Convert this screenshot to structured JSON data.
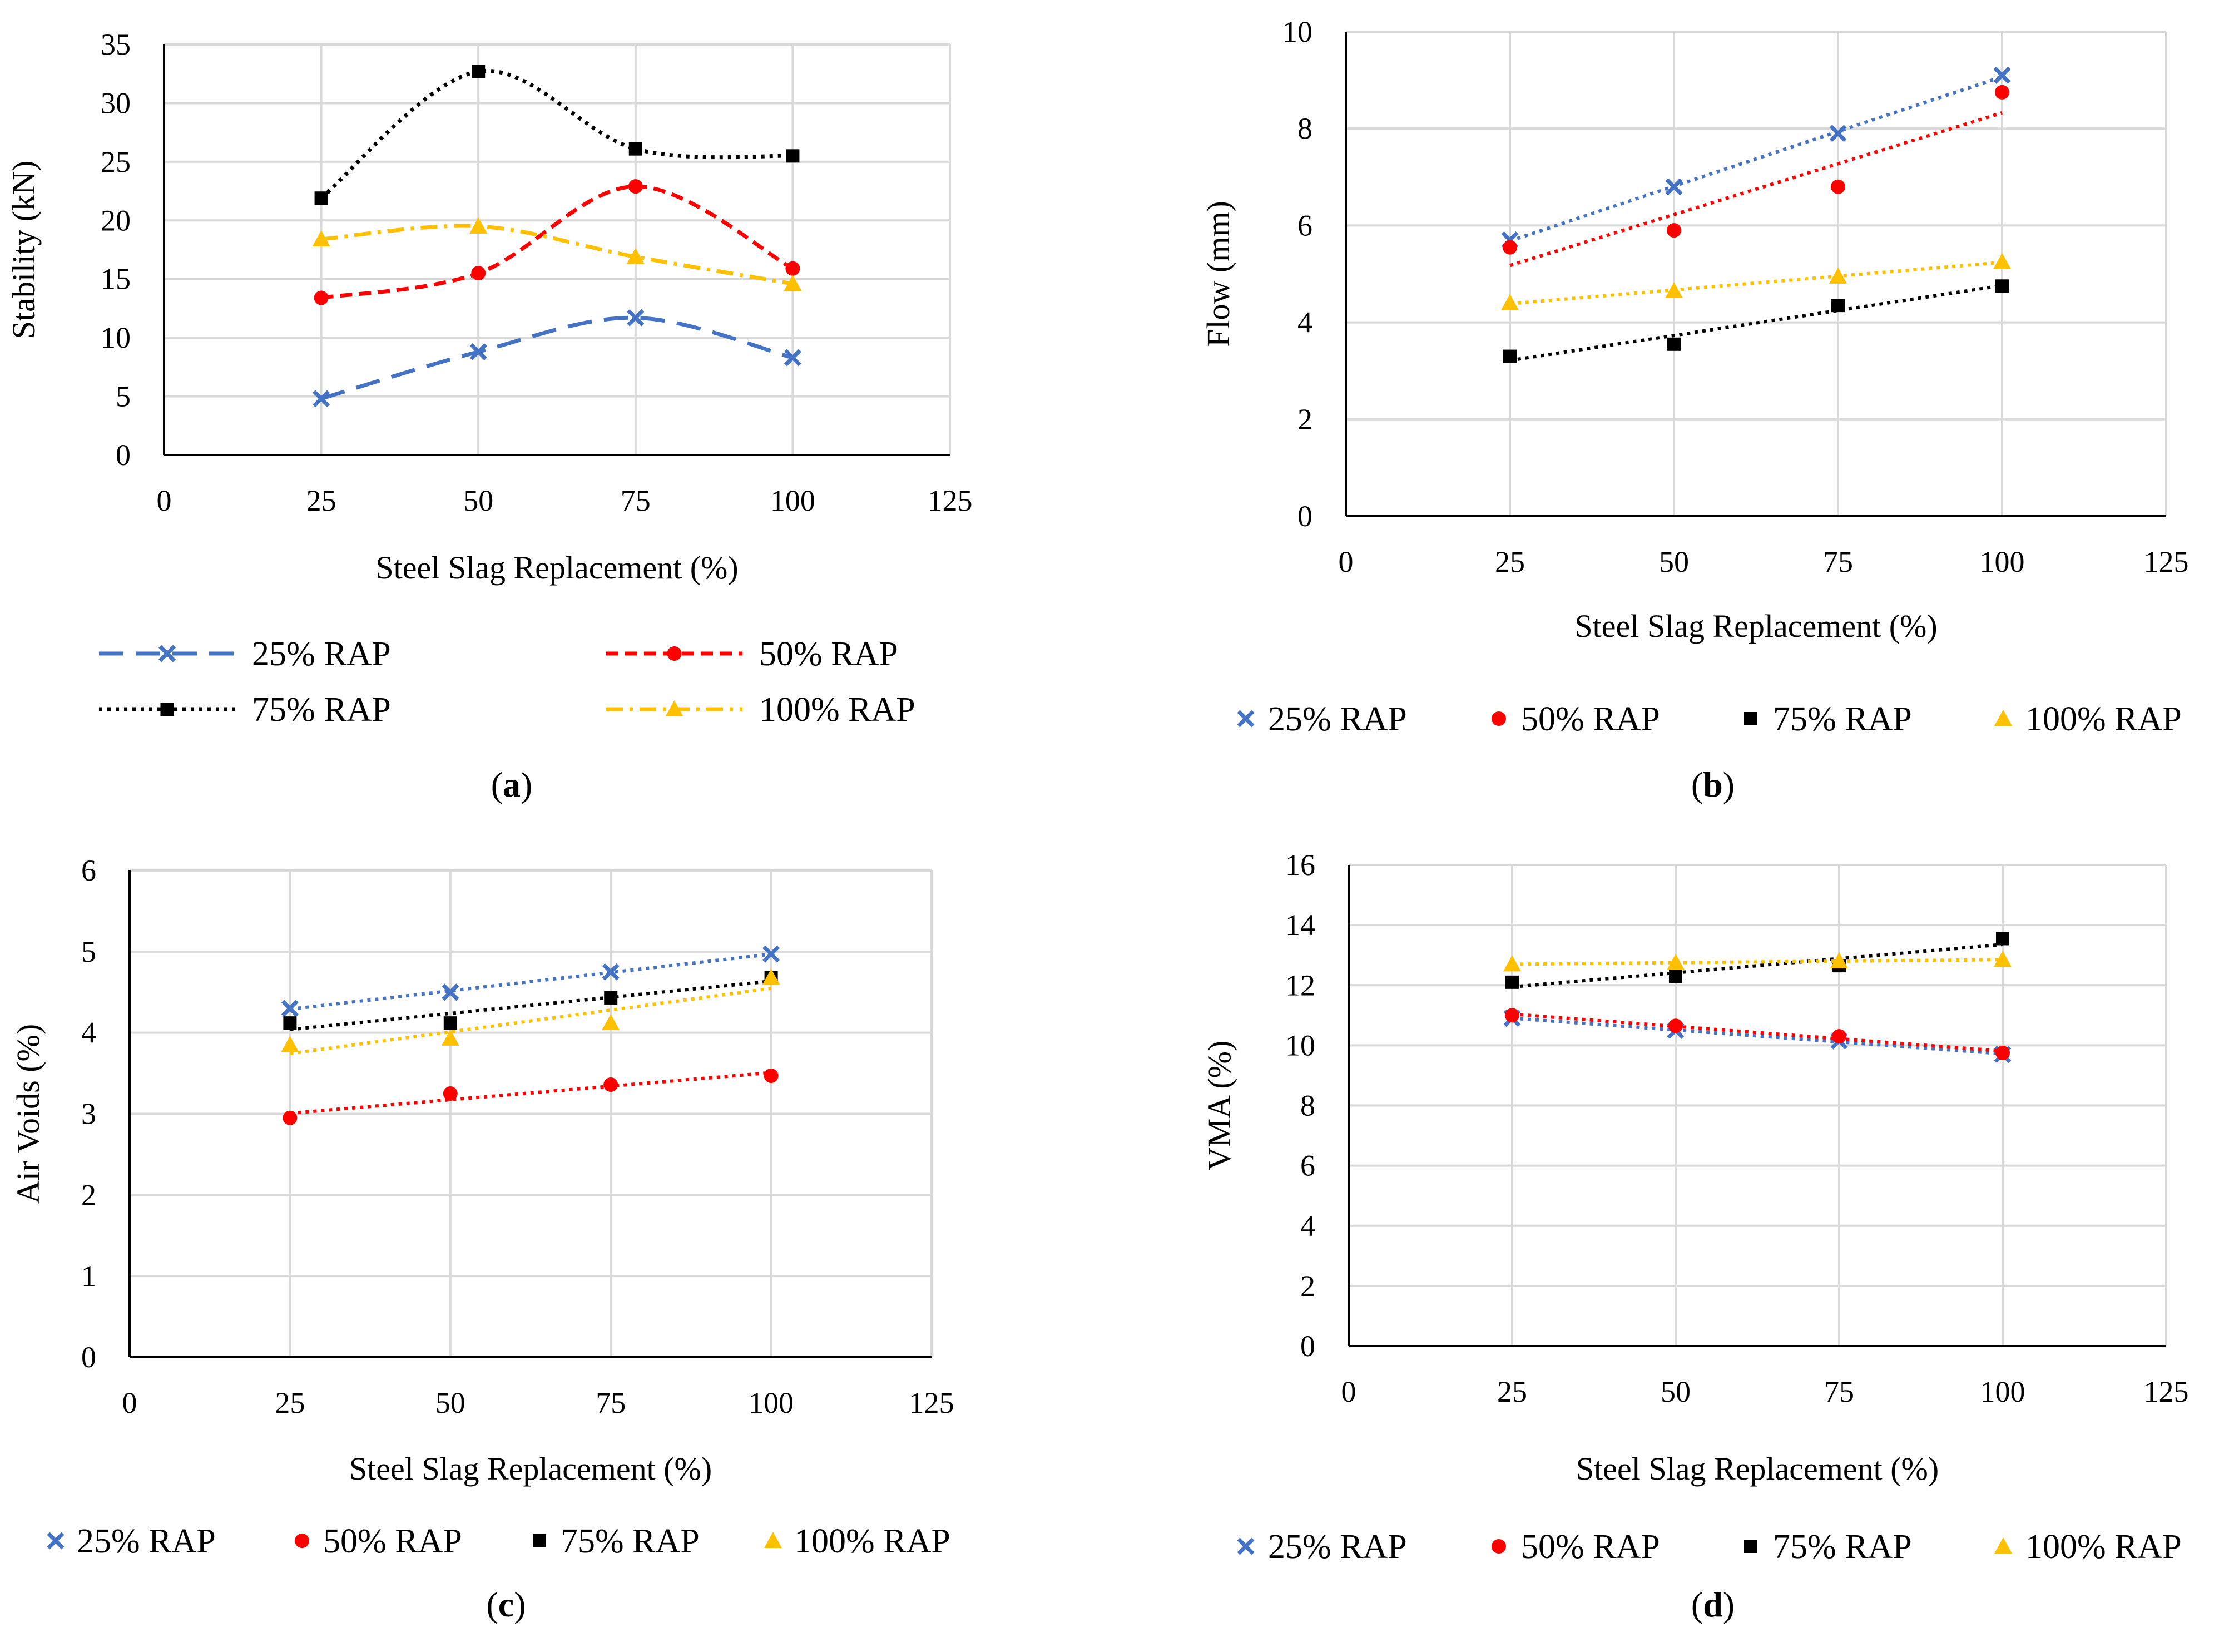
{
  "figure": {
    "colors": {
      "rap25": "#4472C4",
      "rap50": "#FF0000",
      "rap75": "#000000",
      "rap100": "#FFC000",
      "grid": "#D9D9D9",
      "axis": "#000000"
    },
    "panel_labels": [
      {
        "open": "(",
        "letter": "a",
        "close": ")"
      },
      {
        "open": "(",
        "letter": "b",
        "close": ")"
      },
      {
        "open": "(",
        "letter": "c",
        "close": ")"
      },
      {
        "open": "(",
        "letter": "d",
        "close": ")"
      }
    ]
  },
  "chart_data": [
    {
      "panel": "a",
      "type": "line",
      "smooth": true,
      "xlabel": "Steel Slag Replacement (%)",
      "ylabel": "Stability (kN)",
      "xlim": [
        0,
        125
      ],
      "ylim": [
        0,
        35
      ],
      "xticks": [
        "0",
        "25",
        "50",
        "75",
        "100",
        "125"
      ],
      "yticks": [
        "0",
        "5",
        "10",
        "15",
        "20",
        "25",
        "30",
        "35"
      ],
      "grid": true,
      "legend_position": "bottom",
      "x": [
        25,
        50,
        75,
        100
      ],
      "series": [
        {
          "name": "25% RAP",
          "values": [
            4.8,
            8.8,
            11.7,
            8.3
          ],
          "color": "#4472C4",
          "dash": "long-dash",
          "marker": "x"
        },
        {
          "name": "50% RAP",
          "values": [
            13.4,
            15.5,
            22.9,
            15.9
          ],
          "color": "#FF0000",
          "dash": "dash",
          "marker": "circle"
        },
        {
          "name": "75% RAP",
          "values": [
            21.9,
            32.7,
            26.1,
            25.5
          ],
          "color": "#000000",
          "dash": "dot",
          "marker": "square"
        },
        {
          "name": "100% RAP",
          "values": [
            18.4,
            19.5,
            16.9,
            14.6
          ],
          "color": "#FFC000",
          "dash": "dash-dot",
          "marker": "triangle"
        }
      ]
    },
    {
      "panel": "b",
      "type": "scatter",
      "trendline": "linear",
      "xlabel": "Steel Slag Replacement (%)",
      "ylabel": "Flow (mm)",
      "xlim": [
        0,
        125
      ],
      "ylim": [
        0,
        10
      ],
      "xticks": [
        "0",
        "25",
        "50",
        "75",
        "100",
        "125"
      ],
      "yticks": [
        "0",
        "2",
        "4",
        "6",
        "8",
        "10"
      ],
      "grid": true,
      "legend_position": "bottom",
      "x": [
        25,
        50,
        75,
        100
      ],
      "series": [
        {
          "name": "25% RAP",
          "values": [
            5.7,
            6.8,
            7.9,
            9.1
          ],
          "color": "#4472C4",
          "marker": "x"
        },
        {
          "name": "50% RAP",
          "values": [
            5.55,
            5.9,
            6.8,
            8.75
          ],
          "color": "#FF0000",
          "marker": "circle"
        },
        {
          "name": "75% RAP",
          "values": [
            3.3,
            3.55,
            4.35,
            4.75
          ],
          "color": "#000000",
          "marker": "square"
        },
        {
          "name": "100% RAP",
          "values": [
            4.4,
            4.65,
            4.95,
            5.25
          ],
          "color": "#FFC000",
          "marker": "triangle"
        }
      ]
    },
    {
      "panel": "c",
      "type": "scatter",
      "trendline": "linear",
      "xlabel": "Steel Slag Replacement (%)",
      "ylabel": "Air Voids (%)",
      "xlim": [
        0,
        125
      ],
      "ylim": [
        0,
        6
      ],
      "xticks": [
        "0",
        "25",
        "50",
        "75",
        "100",
        "125"
      ],
      "yticks": [
        "0",
        "1",
        "2",
        "3",
        "4",
        "5",
        "6"
      ],
      "grid": true,
      "legend_position": "bottom",
      "x": [
        25,
        50,
        75,
        100
      ],
      "series": [
        {
          "name": "25% RAP",
          "values": [
            4.3,
            4.5,
            4.75,
            4.97
          ],
          "color": "#4472C4",
          "marker": "x"
        },
        {
          "name": "50% RAP",
          "values": [
            2.95,
            3.25,
            3.36,
            3.47
          ],
          "color": "#FF0000",
          "marker": "circle"
        },
        {
          "name": "75% RAP",
          "values": [
            4.12,
            4.12,
            4.43,
            4.68
          ],
          "color": "#000000",
          "marker": "square"
        },
        {
          "name": "100% RAP",
          "values": [
            3.85,
            3.93,
            4.12,
            4.68
          ],
          "color": "#FFC000",
          "marker": "triangle"
        }
      ]
    },
    {
      "panel": "d",
      "type": "scatter",
      "trendline": "linear",
      "xlabel": "Steel Slag Replacement (%)",
      "ylabel": "VMA  (%)",
      "xlim": [
        0,
        125
      ],
      "ylim": [
        0,
        16
      ],
      "xticks": [
        "0",
        "25",
        "50",
        "75",
        "100",
        "125"
      ],
      "yticks": [
        "0",
        "2",
        "4",
        "6",
        "8",
        "10",
        "12",
        "14",
        "16"
      ],
      "grid": true,
      "legend_position": "bottom",
      "x": [
        25,
        50,
        75,
        100
      ],
      "series": [
        {
          "name": "25% RAP",
          "values": [
            10.9,
            10.5,
            10.15,
            9.7
          ],
          "color": "#4472C4",
          "marker": "x"
        },
        {
          "name": "50% RAP",
          "values": [
            11.0,
            10.65,
            10.3,
            9.75
          ],
          "color": "#FF0000",
          "marker": "circle"
        },
        {
          "name": "75% RAP",
          "values": [
            12.1,
            12.3,
            12.65,
            13.55
          ],
          "color": "#000000",
          "marker": "square"
        },
        {
          "name": "100% RAP",
          "values": [
            12.7,
            12.75,
            12.8,
            12.85
          ],
          "color": "#FFC000",
          "marker": "triangle"
        }
      ]
    }
  ]
}
